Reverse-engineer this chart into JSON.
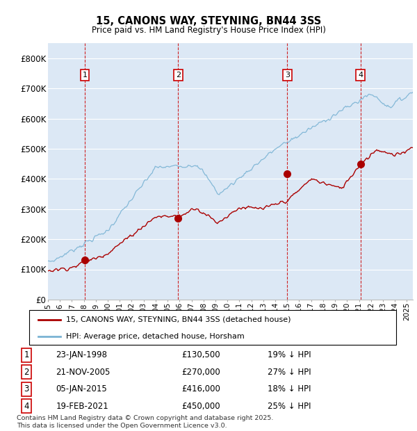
{
  "title": "15, CANONS WAY, STEYNING, BN44 3SS",
  "subtitle": "Price paid vs. HM Land Registry's House Price Index (HPI)",
  "ylim": [
    0,
    850000
  ],
  "yticks": [
    0,
    100000,
    200000,
    300000,
    400000,
    500000,
    600000,
    700000,
    800000
  ],
  "ytick_labels": [
    "£0",
    "£100K",
    "£200K",
    "£300K",
    "£400K",
    "£500K",
    "£600K",
    "£700K",
    "£800K"
  ],
  "hpi_color": "#7ab3d4",
  "price_color": "#aa0000",
  "vline_color": "#cc0000",
  "box_edge_color": "#cc0000",
  "bg_color": "#dce8f5",
  "grid_color": "#ffffff",
  "transactions": [
    {
      "num": 1,
      "date": "23-JAN-1998",
      "price": 130500,
      "pct": "19%",
      "year": 1998.07
    },
    {
      "num": 2,
      "date": "21-NOV-2005",
      "price": 270000,
      "pct": "27%",
      "year": 2005.89
    },
    {
      "num": 3,
      "date": "05-JAN-2015",
      "price": 416000,
      "pct": "18%",
      "year": 2015.01
    },
    {
      "num": 4,
      "date": "19-FEB-2021",
      "price": 450000,
      "pct": "25%",
      "year": 2021.13
    }
  ],
  "legend_entries": [
    "15, CANONS WAY, STEYNING, BN44 3SS (detached house)",
    "HPI: Average price, detached house, Horsham"
  ],
  "footer": "Contains HM Land Registry data © Crown copyright and database right 2025.\nThis data is licensed under the Open Government Licence v3.0.",
  "xlim_start": 1995.0,
  "xlim_end": 2025.5
}
